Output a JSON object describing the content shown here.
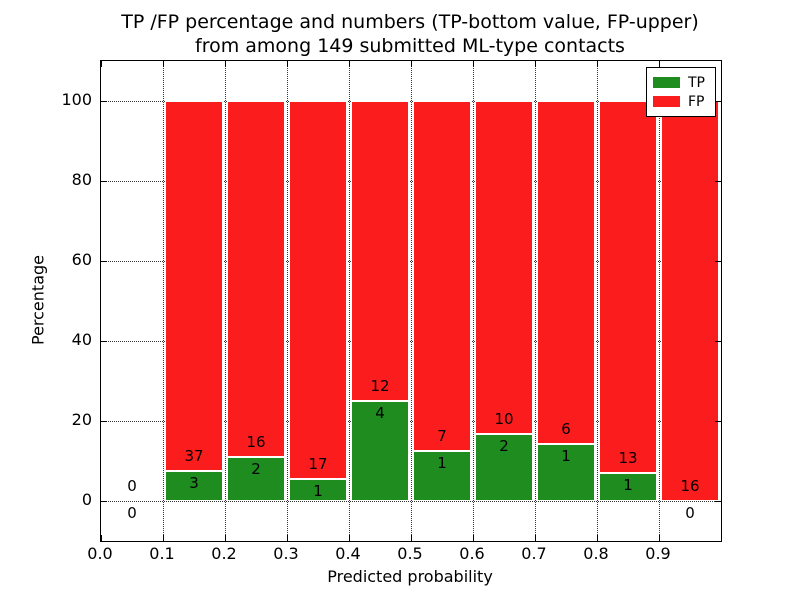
{
  "chart_data": {
    "type": "bar",
    "stacked": true,
    "title": "TP /FP percentage and numbers (TP-bottom value, FP-upper)\nfrom among 149 submitted ML-type contacts",
    "title_line1": "TP /FP percentage and numbers (TP-bottom value, FP-upper)",
    "title_line2": "from among 149 submitted ML-type contacts",
    "xlabel": "Predicted probability",
    "ylabel": "Percentage",
    "xlim": [
      0.0,
      1.0
    ],
    "ylim": [
      -10,
      110
    ],
    "grid": "dotted",
    "legend_position": "upper right",
    "total_contacts": 149,
    "colors": {
      "tp": "#1f8c1f",
      "fp": "#fb1d1d"
    },
    "x_ticks": [
      {
        "value": 0.0,
        "label": "0.0"
      },
      {
        "value": 0.1,
        "label": "0.1"
      },
      {
        "value": 0.2,
        "label": "0.2"
      },
      {
        "value": 0.3,
        "label": "0.3"
      },
      {
        "value": 0.4,
        "label": "0.4"
      },
      {
        "value": 0.5,
        "label": "0.5"
      },
      {
        "value": 0.6,
        "label": "0.6"
      },
      {
        "value": 0.7,
        "label": "0.7"
      },
      {
        "value": 0.8,
        "label": "0.8"
      },
      {
        "value": 0.9,
        "label": "0.9"
      }
    ],
    "y_ticks": [
      {
        "value": 0,
        "label": "0"
      },
      {
        "value": 20,
        "label": "20"
      },
      {
        "value": 40,
        "label": "40"
      },
      {
        "value": 60,
        "label": "60"
      },
      {
        "value": 80,
        "label": "80"
      },
      {
        "value": 100,
        "label": "100"
      }
    ],
    "series": [
      {
        "name": "TP",
        "color": "#1f8c1f",
        "counts": [
          0,
          3,
          2,
          1,
          4,
          1,
          2,
          1,
          1,
          0
        ]
      },
      {
        "name": "FP",
        "color": "#fb1d1d",
        "counts": [
          0,
          37,
          16,
          17,
          12,
          7,
          10,
          6,
          13,
          16
        ]
      }
    ],
    "bins": [
      {
        "x_start": 0.0,
        "x_end": 0.1,
        "tp": 0,
        "fp": 0,
        "tp_pct": 0.0,
        "fp_pct": 0.0
      },
      {
        "x_start": 0.1,
        "x_end": 0.2,
        "tp": 3,
        "fp": 37,
        "tp_pct": 7.5,
        "fp_pct": 92.5
      },
      {
        "x_start": 0.2,
        "x_end": 0.3,
        "tp": 2,
        "fp": 16,
        "tp_pct": 11.1,
        "fp_pct": 88.9
      },
      {
        "x_start": 0.3,
        "x_end": 0.4,
        "tp": 1,
        "fp": 17,
        "tp_pct": 5.6,
        "fp_pct": 94.4
      },
      {
        "x_start": 0.4,
        "x_end": 0.5,
        "tp": 4,
        "fp": 12,
        "tp_pct": 25.0,
        "fp_pct": 75.0
      },
      {
        "x_start": 0.5,
        "x_end": 0.6,
        "tp": 1,
        "fp": 7,
        "tp_pct": 12.5,
        "fp_pct": 87.5
      },
      {
        "x_start": 0.6,
        "x_end": 0.7,
        "tp": 2,
        "fp": 10,
        "tp_pct": 16.7,
        "fp_pct": 83.3
      },
      {
        "x_start": 0.7,
        "x_end": 0.8,
        "tp": 1,
        "fp": 6,
        "tp_pct": 14.3,
        "fp_pct": 85.7
      },
      {
        "x_start": 0.8,
        "x_end": 0.9,
        "tp": 1,
        "fp": 13,
        "tp_pct": 7.1,
        "fp_pct": 92.9
      },
      {
        "x_start": 0.9,
        "x_end": 1.0,
        "tp": 0,
        "fp": 16,
        "tp_pct": 0.0,
        "fp_pct": 100.0
      }
    ]
  }
}
